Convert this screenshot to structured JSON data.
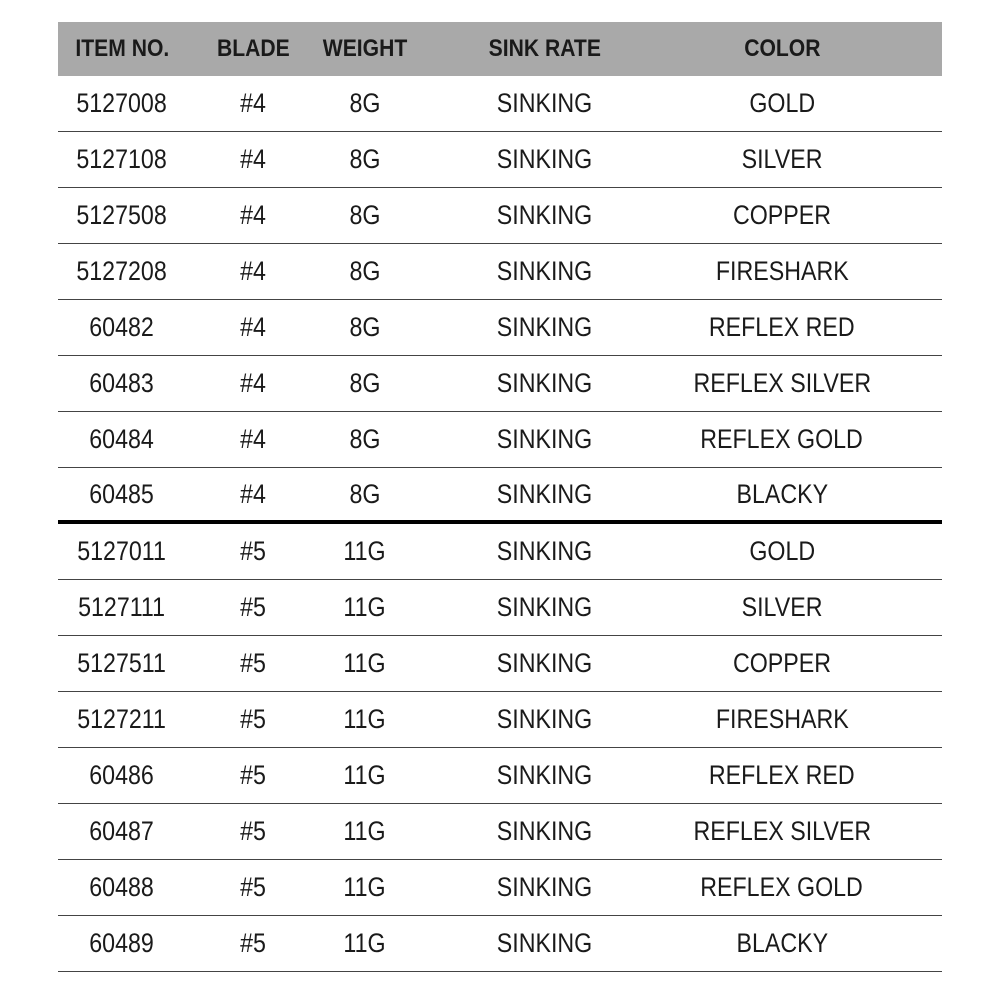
{
  "table": {
    "headers": [
      "ITEM NO.",
      "BLADE",
      "WEIGHT",
      "SINK RATE",
      "COLOR"
    ],
    "rows": [
      [
        "5127008",
        "#4",
        "8G",
        "SINKING",
        "GOLD"
      ],
      [
        "5127108",
        "#4",
        "8G",
        "SINKING",
        "SILVER"
      ],
      [
        "5127508",
        "#4",
        "8G",
        "SINKING",
        "COPPER"
      ],
      [
        "5127208",
        "#4",
        "8G",
        "SINKING",
        "FIRESHARK"
      ],
      [
        "60482",
        "#4",
        "8G",
        "SINKING",
        "REFLEX RED"
      ],
      [
        "60483",
        "#4",
        "8G",
        "SINKING",
        "REFLEX SILVER"
      ],
      [
        "60484",
        "#4",
        "8G",
        "SINKING",
        "REFLEX GOLD"
      ],
      [
        "60485",
        "#4",
        "8G",
        "SINKING",
        "BLACKY"
      ],
      [
        "5127011",
        "#5",
        "11G",
        "SINKING",
        "GOLD"
      ],
      [
        "5127111",
        "#5",
        "11G",
        "SINKING",
        "SILVER"
      ],
      [
        "5127511",
        "#5",
        "11G",
        "SINKING",
        "COPPER"
      ],
      [
        "5127211",
        "#5",
        "11G",
        "SINKING",
        "FIRESHARK"
      ],
      [
        "60486",
        "#5",
        "11G",
        "SINKING",
        "REFLEX RED"
      ],
      [
        "60487",
        "#5",
        "11G",
        "SINKING",
        "REFLEX SILVER"
      ],
      [
        "60488",
        "#5",
        "11G",
        "SINKING",
        "REFLEX GOLD"
      ],
      [
        "60489",
        "#5",
        "11G",
        "SINKING",
        "BLACKY"
      ]
    ],
    "group_separator_after_row": 8,
    "colors": {
      "header_bg": "#a9a9a9",
      "text": "#1a1a1a"
    }
  }
}
